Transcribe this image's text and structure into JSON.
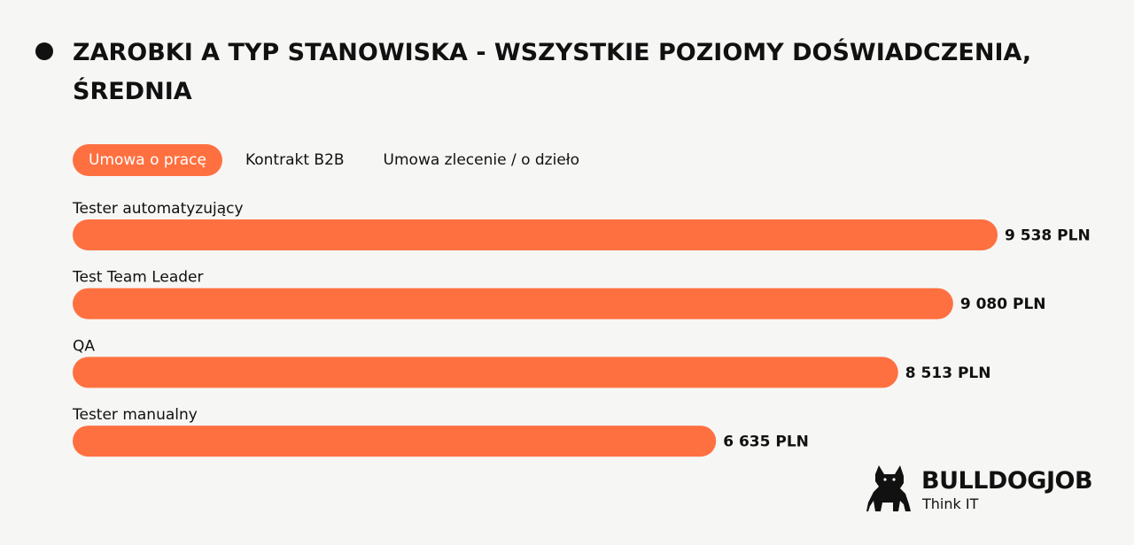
{
  "chart_data": {
    "type": "bar",
    "orientation": "horizontal",
    "title": "ZAROBKI A TYP STANOWISKA - WSZYSTKIE POZIOMY DOŚWIADCZENIA, ŚREDNIA",
    "categories": [
      "Tester automatyzujący",
      "Test Team Leader",
      "QA",
      "Tester manualny"
    ],
    "values": [
      9538,
      9080,
      8513,
      6635
    ],
    "value_labels": [
      "9 538 PLN",
      "9 080 PLN",
      "8 513 PLN",
      "6 635 PLN"
    ],
    "unit": "PLN",
    "bar_color": "#ff7040",
    "xlim": [
      0,
      9538
    ],
    "grid": false,
    "legend": "none"
  },
  "tabs": [
    {
      "label": "Umowa o pracę",
      "active": true
    },
    {
      "label": "Kontrakt B2B",
      "active": false
    },
    {
      "label": "Umowa zlecenie / o dzieło",
      "active": false
    }
  ],
  "logo": {
    "name": "BULLDOGJOB",
    "tagline": "Think IT",
    "icon": "bulldog-icon"
  },
  "colors": {
    "background": "#f6f6f4",
    "accent": "#ff7040",
    "text": "#111111"
  }
}
